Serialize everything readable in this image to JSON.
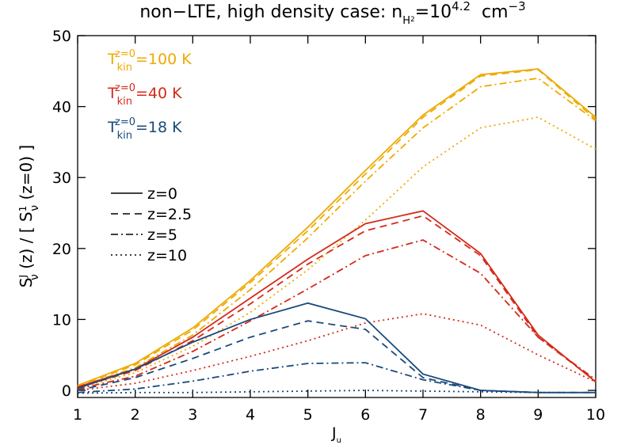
{
  "chart_data": {
    "type": "line",
    "title": [
      "non−LTE, high density case: n",
      "H",
      "2",
      "=10",
      "4.2",
      "  cm",
      "−3"
    ],
    "ylabel": [
      "S",
      "J",
      "ν",
      " (z) / [ S",
      "1",
      "ν",
      " (z=0) ]"
    ],
    "xlabel": [
      "J",
      "u"
    ],
    "x": [
      1,
      2,
      3,
      4,
      5,
      6,
      7,
      8,
      9,
      10
    ],
    "xlim": [
      1,
      10
    ],
    "xticks": [
      1,
      2,
      3,
      4,
      5,
      6,
      7,
      8,
      9,
      10
    ],
    "ylim": [
      -1,
      50
    ],
    "yticks": [
      0,
      10,
      20,
      30,
      40,
      50
    ],
    "line_styles": [
      {
        "label": "z=0",
        "dash": "none"
      },
      {
        "label": "z=2.5",
        "dash": "9 6"
      },
      {
        "label": "z=5",
        "dash": "9 4 2 4"
      },
      {
        "label": "z=10",
        "dash": "2 4"
      }
    ],
    "groups": [
      {
        "legend": [
          "T",
          "kin",
          "z=0",
          "=100 K"
        ],
        "color": "#eeaa00",
        "lines": [
          [
            0.7,
            3.8,
            8.8,
            15.5,
            23,
            31,
            38.8,
            44.5,
            45.3,
            38.5
          ],
          [
            0.6,
            3.6,
            8.5,
            15.2,
            22.5,
            30.5,
            38.5,
            44.3,
            45.2,
            38.2
          ],
          [
            0.5,
            3.2,
            7.8,
            14.2,
            21.5,
            29.5,
            37,
            42.8,
            44,
            38
          ],
          [
            0.3,
            2.5,
            6.2,
            11,
            17,
            24,
            31.5,
            37,
            38.5,
            34
          ]
        ]
      },
      {
        "legend": [
          "T",
          "kin",
          "z=0",
          "=40 K"
        ],
        "color": "#d42a1a",
        "lines": [
          [
            0.5,
            3.0,
            7.5,
            13,
            18.5,
            23.5,
            25.3,
            19.3,
            7.8,
            1.2
          ],
          [
            0.4,
            2.8,
            7.0,
            12.2,
            17.8,
            22.5,
            24.6,
            19.0,
            7.5,
            1.3
          ],
          [
            0.2,
            2.0,
            5.5,
            9.8,
            14.3,
            19,
            21.2,
            16.5,
            7.5,
            1.5
          ],
          [
            0,
            1.0,
            2.8,
            4.8,
            7.0,
            9.5,
            10.8,
            9.2,
            5.0,
            1.2
          ]
        ]
      },
      {
        "legend": [
          "T",
          "kin",
          "z=0",
          "=18 K"
        ],
        "color": "#1a4a7a",
        "lines": [
          [
            0.3,
            3.0,
            6.8,
            10,
            12.3,
            10.1,
            2.3,
            0,
            -0.3,
            -0.3
          ],
          [
            0,
            1.8,
            4.5,
            7.5,
            9.8,
            8.6,
            1.8,
            0,
            -0.3,
            -0.3
          ],
          [
            -0.3,
            0.2,
            1.3,
            2.7,
            3.8,
            3.9,
            1.5,
            0,
            -0.3,
            -0.3
          ],
          [
            -0.4,
            -0.3,
            -0.3,
            -0.2,
            -0.1,
            0.0,
            -0.1,
            -0.2,
            -0.3,
            -0.3
          ]
        ]
      }
    ]
  }
}
